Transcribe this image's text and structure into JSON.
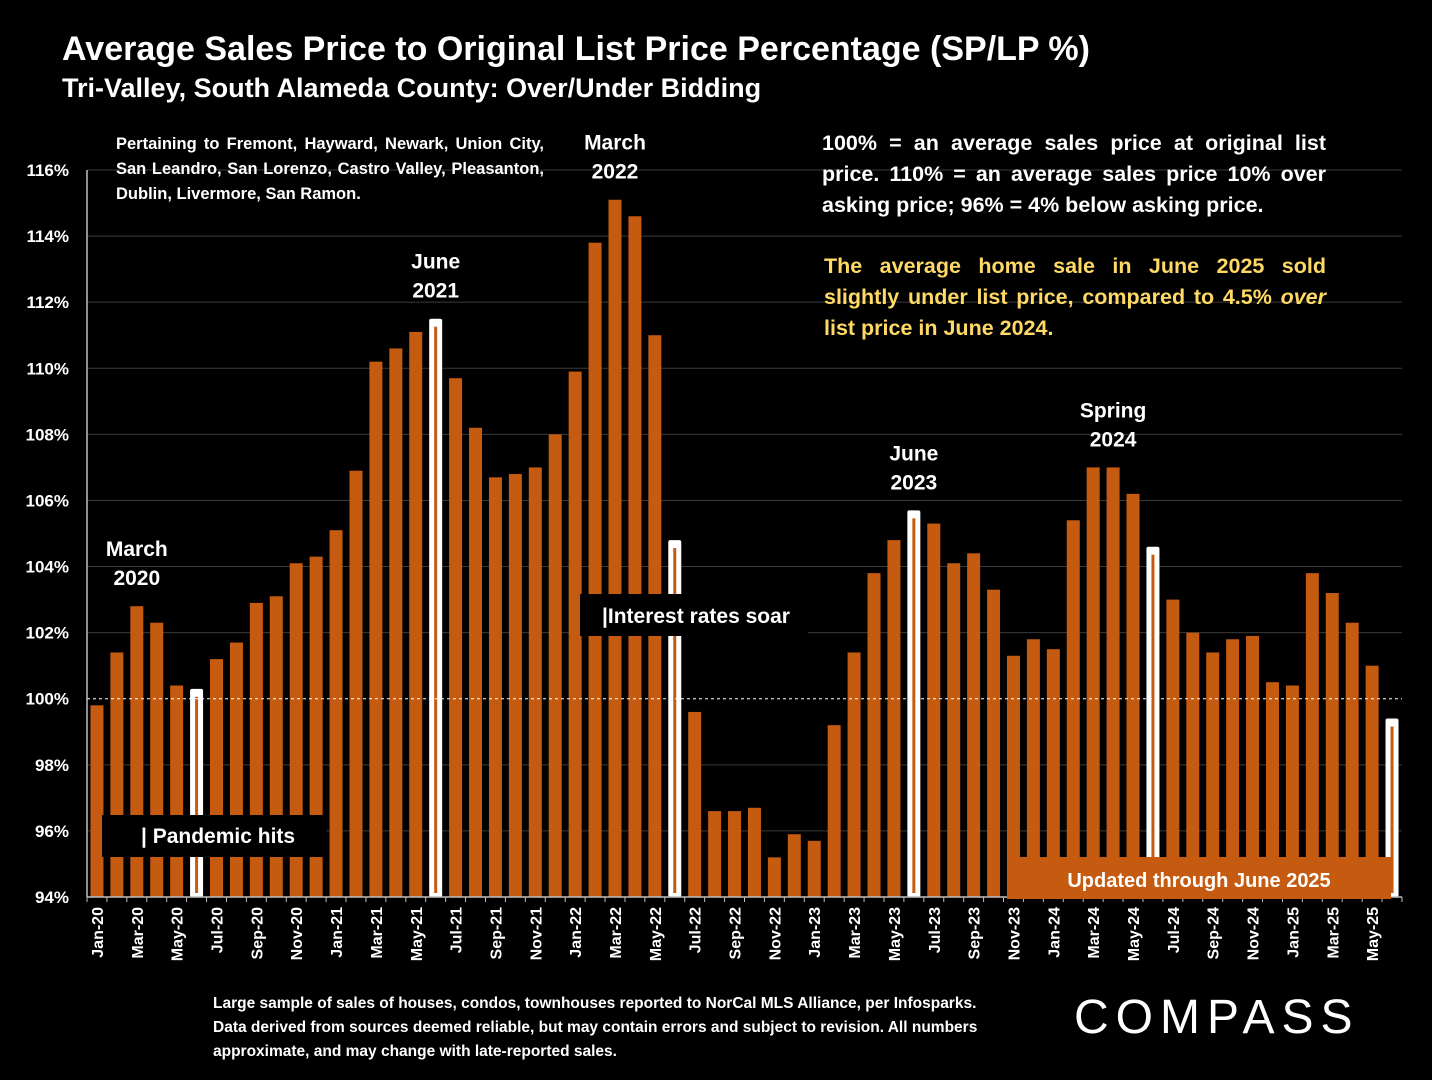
{
  "title": "Average Sales Price to Original List Price Percentage (SP/LP %)",
  "subtitle": "Tri-Valley, South Alameda County:  Over/Under Bidding",
  "notes": {
    "left": "Pertaining to Fremont, Hayward, Newark, Union City, San Leandro, San Lorenzo, Castro Valley, Pleasanton, Dublin, Livermore, San Ramon.",
    "right": "100% = an average sales price at original list price. 110% = an average sales price 10% over asking price; 96% = 4% below asking price.",
    "yellow_part1": "The average home sale in June 2025 sold slightly under list price, compared to 4.5% ",
    "yellow_italic": "over",
    "yellow_part2": " list price in June 2024."
  },
  "footer": "Large sample of sales of houses, condos, townhouses reported to NorCal MLS Alliance, per Infosparks. Data derived from sources deemed reliable, but may contain errors and subject to revision. All numbers approximate, and may change with late-reported sales.",
  "logo": "COMPASS",
  "colors": {
    "bar": "#c55a11",
    "highlight": "#ffffff",
    "background": "#000000",
    "accent_text": "#ffd966"
  },
  "chart_data": {
    "type": "bar",
    "ylim": [
      94,
      116
    ],
    "yticks": [
      "94%",
      "96%",
      "98%",
      "100%",
      "102%",
      "104%",
      "106%",
      "108%",
      "110%",
      "112%",
      "114%",
      "116%"
    ],
    "reference_line": 100,
    "x_tick_labels": [
      "Jan-20",
      "Mar-20",
      "May-20",
      "Jul-20",
      "Sep-20",
      "Nov-20",
      "Jan-21",
      "Mar-21",
      "May-21",
      "Jul-21",
      "Sep-21",
      "Nov-21",
      "Jan-22",
      "Mar-22",
      "May-22",
      "Jul-22",
      "Sep-22",
      "Nov-22",
      "Jan-23",
      "Mar-23",
      "May-23",
      "Jul-23",
      "Sep-23",
      "Nov-23",
      "Jan-24",
      "Mar-24",
      "May-24",
      "Jul-24",
      "Sep-24",
      "Nov-24",
      "Jan-25",
      "Mar-25",
      "May-25"
    ],
    "values": [
      99.8,
      101.4,
      102.8,
      102.3,
      100.4,
      100.3,
      101.2,
      101.7,
      102.9,
      103.1,
      104.1,
      104.3,
      105.1,
      106.9,
      110.2,
      110.6,
      111.1,
      111.5,
      109.7,
      108.2,
      106.7,
      106.8,
      107.0,
      108.0,
      109.9,
      113.8,
      115.1,
      114.6,
      111.0,
      104.8,
      99.6,
      96.6,
      96.6,
      96.7,
      95.2,
      95.9,
      95.7,
      99.2,
      101.4,
      103.8,
      104.8,
      105.7,
      105.3,
      104.1,
      104.4,
      103.3,
      101.3,
      101.8,
      101.5,
      105.4,
      107.0,
      107.0,
      106.2,
      104.6,
      103.0,
      102.0,
      101.4,
      101.8,
      101.9,
      100.5,
      100.4,
      103.8,
      103.2,
      102.3,
      101.0,
      99.4
    ],
    "highlighted_indices": [
      5,
      17,
      29,
      41,
      53,
      65
    ],
    "annotations": [
      {
        "index": 2,
        "text": [
          "March",
          "2020"
        ]
      },
      {
        "index": 17,
        "text": [
          "June",
          "2021"
        ]
      },
      {
        "index": 26,
        "text": [
          "March",
          "2022"
        ]
      },
      {
        "index": 41,
        "text": [
          "June",
          "2023"
        ]
      },
      {
        "index": 51,
        "text": [
          "Spring",
          "2024"
        ]
      }
    ],
    "callouts": {
      "pandemic": "| Pandemic hits",
      "rates": "|Interest rates soar",
      "updated": "Updated through June 2025"
    }
  }
}
